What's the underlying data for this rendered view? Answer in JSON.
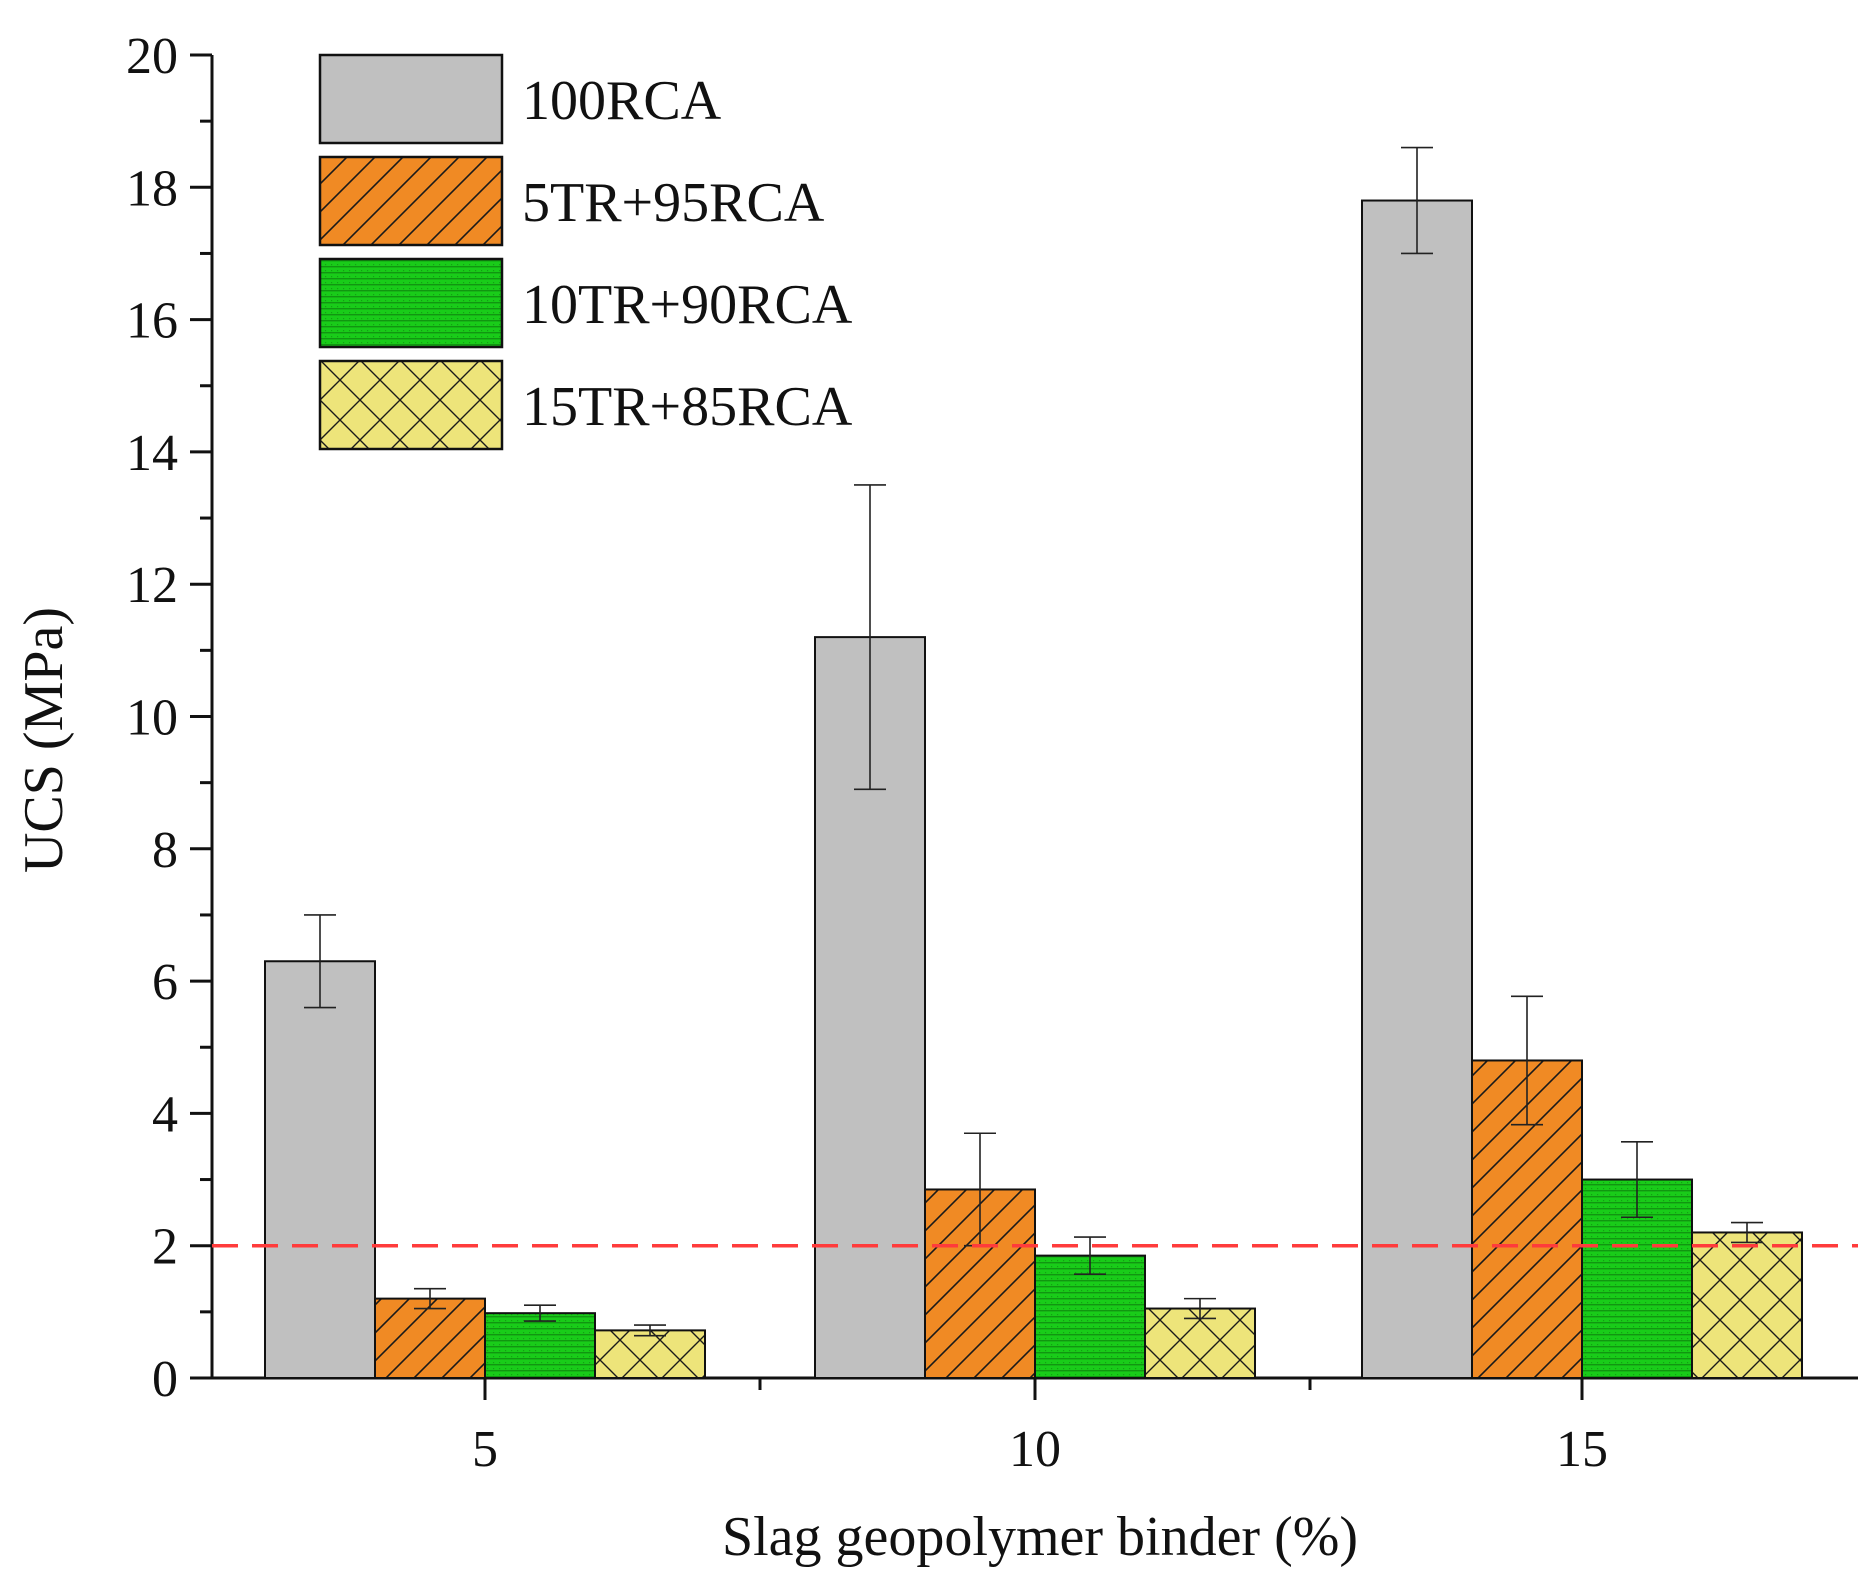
{
  "chart_data": {
    "type": "bar",
    "title": "",
    "xlabel": "Slag geopolymer binder (%)",
    "ylabel": "UCS (MPa)",
    "categories": [
      "5",
      "10",
      "15"
    ],
    "ylim": [
      0,
      20
    ],
    "yticks": [
      "0",
      "2",
      "4",
      "6",
      "8",
      "10",
      "12",
      "14",
      "16",
      "18",
      "20"
    ],
    "grid": false,
    "legend_position": "top-left",
    "series": [
      {
        "name": "100RCA",
        "color": "#c0c0c0",
        "pattern": "none",
        "values": [
          6.3,
          11.2,
          17.8
        ],
        "errors": [
          0.7,
          2.3,
          0.8
        ]
      },
      {
        "name": "5TR+95RCA",
        "color": "#f08a24",
        "pattern": "diagonal",
        "values": [
          1.2,
          2.85,
          4.8
        ],
        "errors": [
          0.15,
          0.85,
          0.97
        ]
      },
      {
        "name": "10TR+90RCA",
        "color": "#19cc19",
        "pattern": "dots",
        "values": [
          0.98,
          1.85,
          3.0
        ],
        "errors": [
          0.12,
          0.28,
          0.57
        ]
      },
      {
        "name": "15TR+85RCA",
        "color": "#ede47a",
        "pattern": "crosshatch",
        "values": [
          0.72,
          1.05,
          2.2
        ],
        "errors": [
          0.08,
          0.15,
          0.15
        ]
      }
    ],
    "reference_line": {
      "value": 2,
      "color": "#ff3b3b",
      "style": "dashed"
    }
  }
}
